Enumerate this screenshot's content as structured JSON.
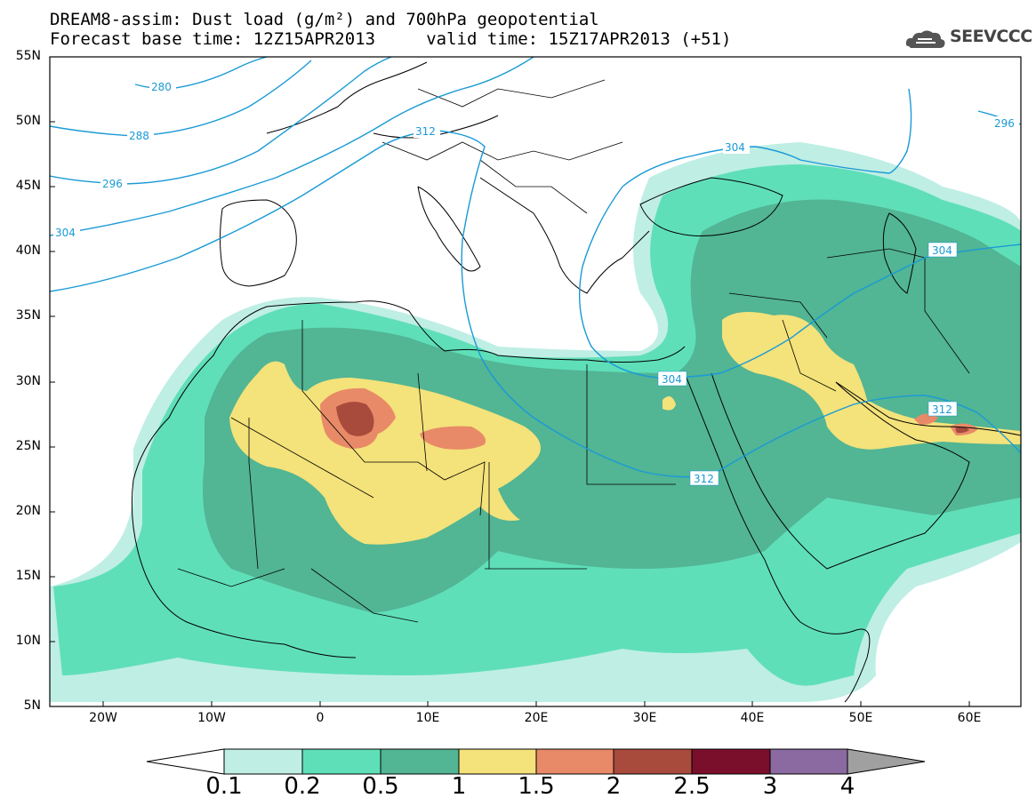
{
  "title_line1": "DREAM8-assim: Dust load (g/m²) and 700hPa geopotential",
  "title_line2": "Forecast base time: 12Z15APR2013     valid time: 15Z17APR2013 (+51)",
  "logo_text": "SEEVCCC",
  "lat_labels": [
    "55N",
    "50N",
    "45N",
    "40N",
    "35N",
    "30N",
    "25N",
    "20N",
    "15N",
    "10N",
    "5N"
  ],
  "lon_labels": [
    "20W",
    "10W",
    "0",
    "10E",
    "20E",
    "30E",
    "40E",
    "50E",
    "60E"
  ],
  "colorbar": {
    "labels": [
      "0.1",
      "0.2",
      "0.5",
      "1",
      "1.5",
      "2",
      "2.5",
      "3",
      "4"
    ],
    "colors": [
      "#bfeee4",
      "#5fdfb8",
      "#52b594",
      "#f4e27a",
      "#e88a68",
      "#a84a3c",
      "#7a0f2c",
      "#8a6aa0",
      "#a0a0a0"
    ]
  },
  "contour_labels": [
    "280",
    "288",
    "296",
    "304",
    "312",
    "304",
    "296",
    "304",
    "304",
    "312",
    "312"
  ],
  "colors": {
    "geopotential": "#1a9ad6",
    "land_lines": "#000000",
    "background": "#ffffff"
  }
}
